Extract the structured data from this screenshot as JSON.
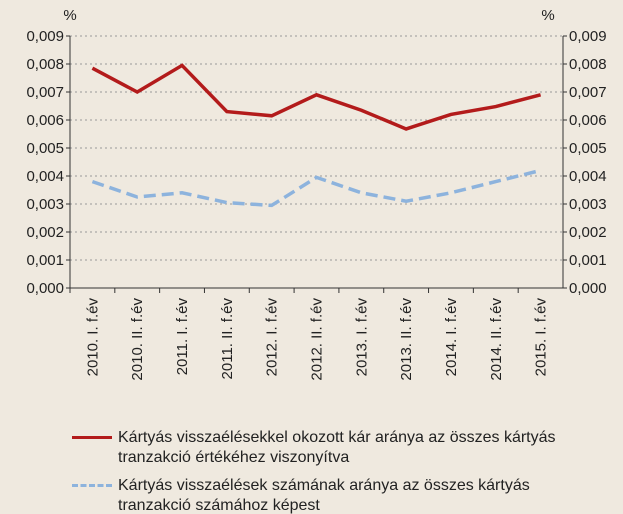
{
  "chart_data": {
    "type": "line",
    "ylabel": "%",
    "y2label": "%",
    "categories": [
      "2010. I. f.év",
      "2010. II. f.év",
      "2011. I. f.év",
      "2011. II. f.év",
      "2012. I. f.év",
      "2012. II. f.év",
      "2013. I. f.év",
      "2013. II. f.év",
      "2014. I. f.év",
      "2014. II. f.év",
      "2015. I. f.év"
    ],
    "series": [
      {
        "name": "Kártyás visszaélésekkel okozott kár aránya az összes kártyás tranzakció értékéhez viszonyítva",
        "color": "#b31b1b",
        "dashed": false,
        "values": [
          0.00785,
          0.007,
          0.00795,
          0.0063,
          0.00615,
          0.0069,
          0.00635,
          0.00568,
          0.0062,
          0.00648,
          0.0069
        ]
      },
      {
        "name": "Kártyás visszaélések számának aránya az összes kártyás tranzakció számához képest",
        "color": "#8db3dd",
        "dashed": true,
        "values": [
          0.0038,
          0.00325,
          0.0034,
          0.00305,
          0.00295,
          0.00395,
          0.0034,
          0.0031,
          0.0034,
          0.0038,
          0.0042
        ]
      }
    ],
    "ylim": [
      0,
      0.009
    ],
    "yticks": [
      {
        "value": 0,
        "label": "0,000"
      },
      {
        "value": 0.001,
        "label": "0,001"
      },
      {
        "value": 0.002,
        "label": "0,002"
      },
      {
        "value": 0.003,
        "label": "0,003"
      },
      {
        "value": 0.004,
        "label": "0,004"
      },
      {
        "value": 0.005,
        "label": "0,005"
      },
      {
        "value": 0.006,
        "label": "0,006"
      },
      {
        "value": 0.007,
        "label": "0,007"
      },
      {
        "value": 0.008,
        "label": "0,008"
      },
      {
        "value": 0.009,
        "label": "0,009"
      }
    ],
    "y2lim": [
      0,
      0.009
    ],
    "y2ticks": [
      {
        "value": 0,
        "label": "0,000"
      },
      {
        "value": 0.001,
        "label": "0,001"
      },
      {
        "value": 0.002,
        "label": "0,002"
      },
      {
        "value": 0.003,
        "label": "0,003"
      },
      {
        "value": 0.004,
        "label": "0,004"
      },
      {
        "value": 0.005,
        "label": "0,005"
      },
      {
        "value": 0.006,
        "label": "0,006"
      },
      {
        "value": 0.007,
        "label": "0,007"
      },
      {
        "value": 0.008,
        "label": "0,008"
      },
      {
        "value": 0.009,
        "label": "0,009"
      }
    ],
    "grid": true,
    "legend": "bottom"
  }
}
